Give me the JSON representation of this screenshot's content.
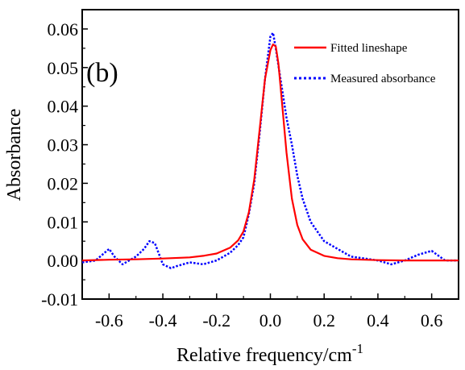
{
  "chart_data": {
    "type": "line",
    "panel_label": "(b)",
    "xlabel": "Relative frequency/cm",
    "xlabel_superscript": "-1",
    "ylabel": "Absorbance",
    "xlim": [
      -0.7,
      0.7
    ],
    "ylim": [
      -0.01,
      0.065
    ],
    "x_ticks": [
      -0.6,
      -0.4,
      -0.2,
      0.0,
      0.2,
      0.4,
      0.6
    ],
    "x_tick_labels": [
      "-0.6",
      "-0.4",
      "-0.2",
      "0.0",
      "0.2",
      "0.4",
      "0.6"
    ],
    "y_ticks": [
      -0.01,
      0.0,
      0.01,
      0.02,
      0.03,
      0.04,
      0.05,
      0.06
    ],
    "y_tick_labels": [
      "-0.01",
      "0.00",
      "0.01",
      "0.02",
      "0.03",
      "0.04",
      "0.05",
      "0.06"
    ],
    "legend_position": "top-right",
    "grid": false,
    "series": [
      {
        "name": "Fitted lineshape",
        "style": "solid",
        "color": "#ff0000",
        "x": [
          -0.7,
          -0.6,
          -0.5,
          -0.4,
          -0.3,
          -0.25,
          -0.2,
          -0.15,
          -0.12,
          -0.1,
          -0.08,
          -0.06,
          -0.04,
          -0.02,
          0.0,
          0.01,
          0.02,
          0.03,
          0.04,
          0.06,
          0.08,
          0.1,
          0.12,
          0.15,
          0.2,
          0.25,
          0.3,
          0.4,
          0.5,
          0.6,
          0.7
        ],
        "y": [
          0.0,
          0.0002,
          0.0003,
          0.0005,
          0.0008,
          0.0012,
          0.0018,
          0.0033,
          0.0052,
          0.0075,
          0.0125,
          0.021,
          0.034,
          0.047,
          0.0545,
          0.056,
          0.0555,
          0.051,
          0.0435,
          0.028,
          0.016,
          0.0092,
          0.0055,
          0.0028,
          0.0012,
          0.0006,
          0.0003,
          0.0001,
          0.0,
          0.0,
          0.0
        ]
      },
      {
        "name": "Measured absorbance",
        "style": "dotted",
        "color": "#0000ff",
        "x": [
          -0.7,
          -0.65,
          -0.6,
          -0.58,
          -0.55,
          -0.5,
          -0.47,
          -0.45,
          -0.43,
          -0.4,
          -0.37,
          -0.35,
          -0.3,
          -0.25,
          -0.2,
          -0.15,
          -0.12,
          -0.1,
          -0.08,
          -0.06,
          -0.04,
          -0.02,
          0.0,
          0.01,
          0.02,
          0.04,
          0.06,
          0.08,
          0.1,
          0.12,
          0.15,
          0.2,
          0.25,
          0.3,
          0.35,
          0.4,
          0.45,
          0.5,
          0.55,
          0.6,
          0.65,
          0.7
        ],
        "y": [
          -0.0005,
          0.0,
          0.003,
          0.001,
          -0.001,
          0.001,
          0.003,
          0.005,
          0.0045,
          -0.001,
          -0.002,
          -0.0015,
          -0.0005,
          -0.001,
          0.0,
          0.002,
          0.004,
          0.006,
          0.012,
          0.02,
          0.033,
          0.047,
          0.058,
          0.059,
          0.055,
          0.046,
          0.037,
          0.03,
          0.022,
          0.016,
          0.01,
          0.005,
          0.003,
          0.001,
          0.0005,
          0.0,
          -0.001,
          0.0,
          0.0015,
          0.0025,
          0.0,
          0.0
        ]
      }
    ]
  }
}
